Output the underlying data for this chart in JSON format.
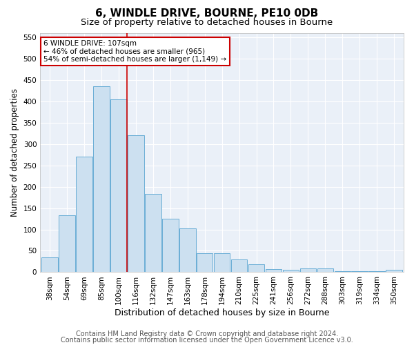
{
  "title1": "6, WINDLE DRIVE, BOURNE, PE10 0DB",
  "title2": "Size of property relative to detached houses in Bourne",
  "xlabel": "Distribution of detached houses by size in Bourne",
  "ylabel": "Number of detached properties",
  "categories": [
    "38sqm",
    "54sqm",
    "69sqm",
    "85sqm",
    "100sqm",
    "116sqm",
    "132sqm",
    "147sqm",
    "163sqm",
    "178sqm",
    "194sqm",
    "210sqm",
    "225sqm",
    "241sqm",
    "256sqm",
    "272sqm",
    "288sqm",
    "303sqm",
    "319sqm",
    "334sqm",
    "350sqm"
  ],
  "values": [
    35,
    133,
    270,
    435,
    405,
    320,
    183,
    125,
    103,
    45,
    45,
    30,
    18,
    7,
    5,
    9,
    9,
    3,
    3,
    3,
    5
  ],
  "bar_color": "#cce0f0",
  "bar_edge_color": "#6aaed6",
  "red_line_x": 4.5,
  "annotation_text": "6 WINDLE DRIVE: 107sqm\n← 46% of detached houses are smaller (965)\n54% of semi-detached houses are larger (1,149) →",
  "annotation_box_color": "#ffffff",
  "annotation_box_edge_color": "#cc0000",
  "ylim": [
    0,
    560
  ],
  "yticks": [
    0,
    50,
    100,
    150,
    200,
    250,
    300,
    350,
    400,
    450,
    500,
    550
  ],
  "footer1": "Contains HM Land Registry data © Crown copyright and database right 2024.",
  "footer2": "Contains public sector information licensed under the Open Government Licence v3.0.",
  "bg_color": "#ffffff",
  "plot_bg_color": "#eaf0f8",
  "grid_color": "#ffffff",
  "title1_fontsize": 11,
  "title2_fontsize": 9.5,
  "tick_fontsize": 7.5,
  "xlabel_fontsize": 9,
  "ylabel_fontsize": 8.5,
  "footer_fontsize": 7
}
